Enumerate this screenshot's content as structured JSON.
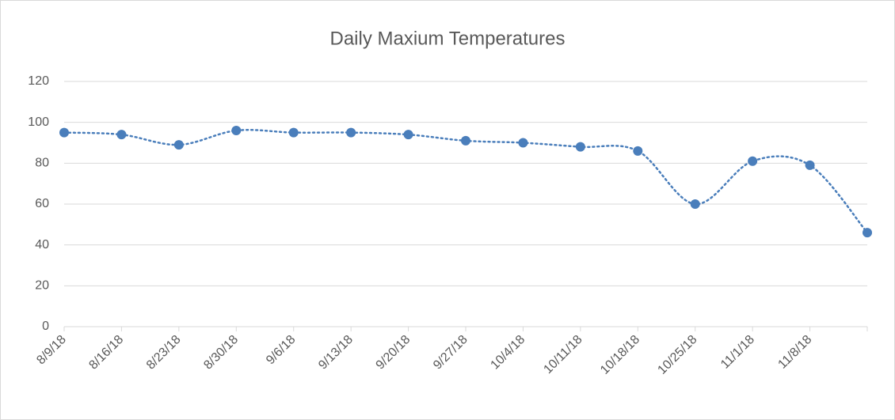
{
  "chart_data": {
    "type": "line",
    "title": "Daily Maxium Temperatures",
    "categories": [
      "8/9/18",
      "8/16/18",
      "8/23/18",
      "8/30/18",
      "9/6/18",
      "9/13/18",
      "9/20/18",
      "9/27/18",
      "10/4/18",
      "10/11/18",
      "10/18/18",
      "10/25/18",
      "11/1/18",
      "11/8/18",
      null
    ],
    "series": [
      {
        "color": "#4a7ebb",
        "values": [
          95,
          94,
          89,
          96,
          95,
          95,
          94,
          91,
          90,
          88,
          86,
          60,
          81,
          79,
          46
        ]
      }
    ],
    "ylim": [
      0,
      120
    ],
    "yticks": [
      0,
      20,
      40,
      60,
      80,
      100,
      120
    ],
    "grid": true,
    "smooth": true,
    "line_style": "dotted"
  }
}
